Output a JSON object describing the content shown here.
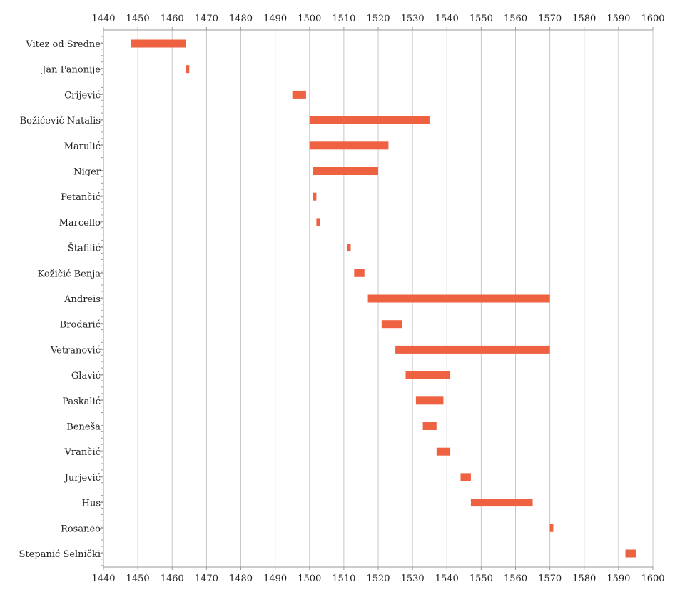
{
  "chart_data": {
    "type": "bar",
    "orientation": "horizontal-range",
    "title": "",
    "xlabel": "",
    "ylabel": "",
    "xlim": [
      1440,
      1600
    ],
    "x_ticks": [
      1440,
      1450,
      1460,
      1470,
      1480,
      1490,
      1500,
      1510,
      1520,
      1530,
      1540,
      1550,
      1560,
      1570,
      1580,
      1590,
      1600
    ],
    "grid": true,
    "bar_color": "#ee6241",
    "categories": [
      "Vitez od Sredne",
      "Jan Panonije",
      "Crijević",
      "Božićević Natalis",
      "Marulić",
      "Niger",
      "Petančić",
      "Marcello",
      "Štafilić",
      "Kožičić Benja",
      "Andreis",
      "Brodarić",
      "Vetranović",
      "Glavić",
      "Paskalić",
      "Beneša",
      "Vrančić",
      "Jurjević",
      "Hus",
      "Rosaneo",
      "Stepanić Selnički"
    ],
    "ranges": [
      [
        1448,
        1464
      ],
      [
        1464,
        1465
      ],
      [
        1495,
        1499
      ],
      [
        1500,
        1535
      ],
      [
        1500,
        1523
      ],
      [
        1501,
        1520
      ],
      [
        1501,
        1502
      ],
      [
        1502,
        1503
      ],
      [
        1511,
        1512
      ],
      [
        1513,
        1516
      ],
      [
        1517,
        1570
      ],
      [
        1521,
        1527
      ],
      [
        1525,
        1570
      ],
      [
        1528,
        1541
      ],
      [
        1531,
        1539
      ],
      [
        1533,
        1537
      ],
      [
        1537,
        1541
      ],
      [
        1544,
        1547
      ],
      [
        1547,
        1565
      ],
      [
        1570,
        1571
      ],
      [
        1592,
        1595
      ]
    ]
  }
}
